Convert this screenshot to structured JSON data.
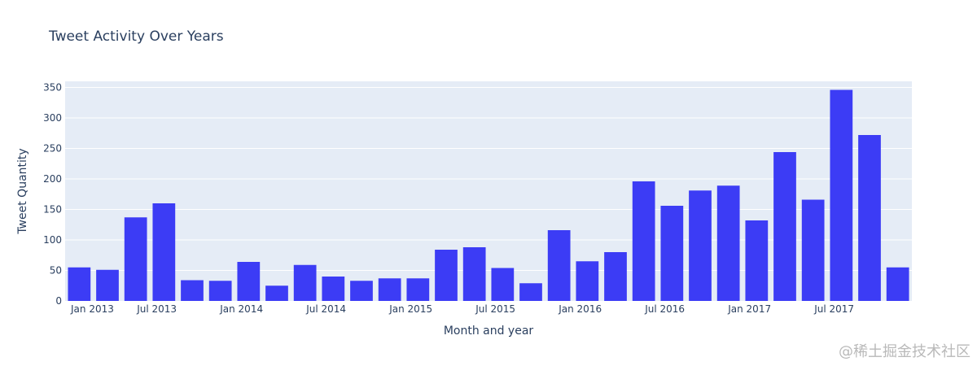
{
  "chart_data": {
    "type": "bar",
    "title": "Tweet Activity Over Years",
    "xlabel": "Month and year",
    "ylabel": "Tweet Quantity",
    "x_tick_labels": [
      "Jan 2013",
      "Jul 2013",
      "Jan 2014",
      "Jul 2014",
      "Jan 2015",
      "Jul 2015",
      "Jan 2016",
      "Jul 2016",
      "Jan 2017",
      "Jul 2017"
    ],
    "categories": [
      "2013-01",
      "2013-03",
      "2013-05",
      "2013-07",
      "2013-09",
      "2013-11",
      "2014-01",
      "2014-03",
      "2014-05",
      "2014-07",
      "2014-09",
      "2014-11",
      "2015-01",
      "2015-03",
      "2015-05",
      "2015-07",
      "2015-09",
      "2015-11",
      "2016-01",
      "2016-03",
      "2016-05",
      "2016-07",
      "2016-09",
      "2016-11",
      "2017-01",
      "2017-03",
      "2017-05",
      "2017-07",
      "2017-09",
      "2017-11"
    ],
    "values": [
      55,
      51,
      137,
      160,
      34,
      33,
      64,
      25,
      59,
      40,
      33,
      37,
      37,
      84,
      88,
      54,
      29,
      116,
      65,
      80,
      196,
      156,
      181,
      189,
      132,
      244,
      166,
      346,
      272,
      55
    ],
    "ylim": [
      0,
      360
    ],
    "yticks": [
      0,
      50,
      100,
      150,
      200,
      250,
      300,
      350
    ],
    "grid": true,
    "colors": {
      "bar": "#3c3cf5",
      "plot_bg": "#e5ecf6",
      "grid": "#ffffff",
      "text": "#2a3f5f"
    }
  },
  "watermark": "@稀土掘金技术社区"
}
